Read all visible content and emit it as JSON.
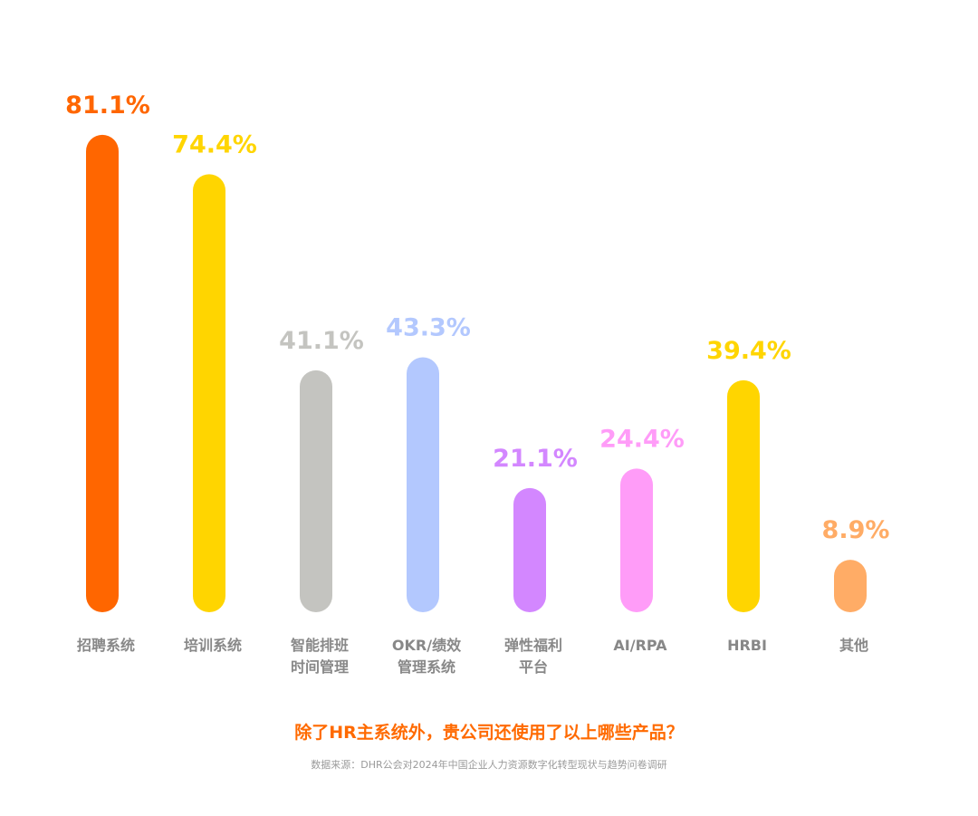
{
  "chart_data": {
    "type": "bar",
    "categories": [
      "招聘系统",
      "培训系统",
      "智能排班\n时间管理",
      "OKR/绩效\n管理系统",
      "弹性福利\n平台",
      "AI/RPA",
      "HRBI",
      "其他"
    ],
    "values": [
      81.1,
      74.4,
      41.1,
      43.3,
      21.1,
      24.4,
      39.4,
      8.9
    ],
    "value_labels": [
      "81.1%",
      "74.4%",
      "41.1%",
      "43.3%",
      "21.1%",
      "24.4%",
      "39.4%",
      "8.9%"
    ],
    "colors": [
      "#ff6600",
      "#ffd500",
      "#c4c4c0",
      "#b3c8fe",
      "#d387ff",
      "#ff9cf8",
      "#ffd500",
      "#ffac66"
    ],
    "title": "除了HR主系统外，贵公司还使用了以上哪些产品？",
    "source": "数据来源：DHR公会对2024年中国企业人力资源数字化转型现状与趋势问卷调研",
    "ylim": [
      0,
      100
    ],
    "grid": false,
    "legend": "none"
  }
}
